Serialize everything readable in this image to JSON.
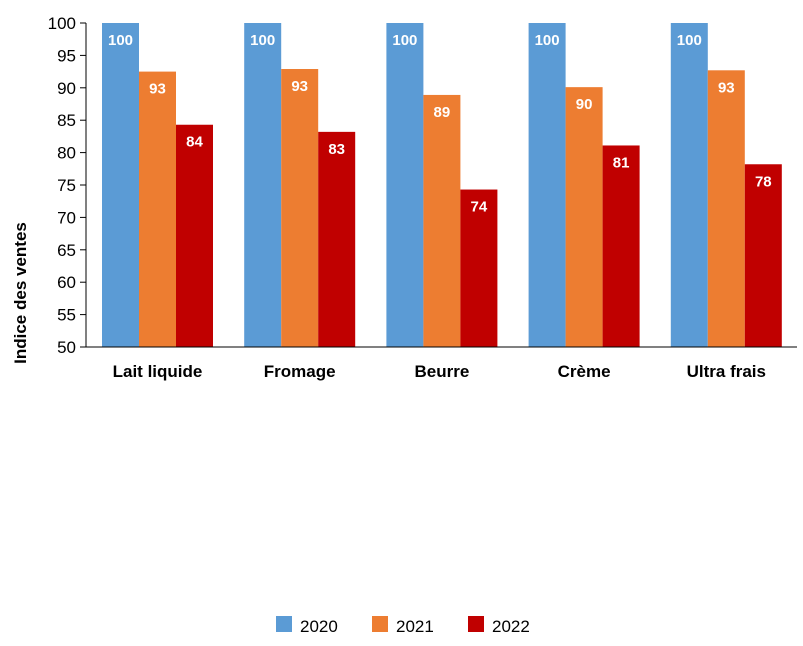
{
  "chart_data": {
    "type": "bar",
    "title": "",
    "xlabel": "",
    "ylabel": "Indice des ventes",
    "ylim": [
      50,
      100
    ],
    "yticks": [
      50,
      55,
      60,
      65,
      70,
      75,
      80,
      85,
      90,
      95,
      100
    ],
    "grid": false,
    "legend_position": "bottom",
    "categories": [
      "Lait liquide",
      "Fromage",
      "Beurre",
      "Crème",
      "Ultra frais"
    ],
    "series": [
      {
        "name": "2020",
        "color": "#5b9bd5",
        "values": [
          100,
          100,
          100,
          100,
          100
        ],
        "labels": [
          "100",
          "100",
          "100",
          "100",
          "100"
        ]
      },
      {
        "name": "2021",
        "color": "#ed7d31",
        "values": [
          92.5,
          92.9,
          88.9,
          90.1,
          92.7
        ],
        "labels": [
          "93",
          "93",
          "89",
          "90",
          "93"
        ]
      },
      {
        "name": "2022",
        "color": "#c00000",
        "values": [
          84.3,
          83.2,
          74.3,
          81.1,
          78.2
        ],
        "labels": [
          "84",
          "83",
          "74",
          "81",
          "78"
        ]
      }
    ]
  }
}
